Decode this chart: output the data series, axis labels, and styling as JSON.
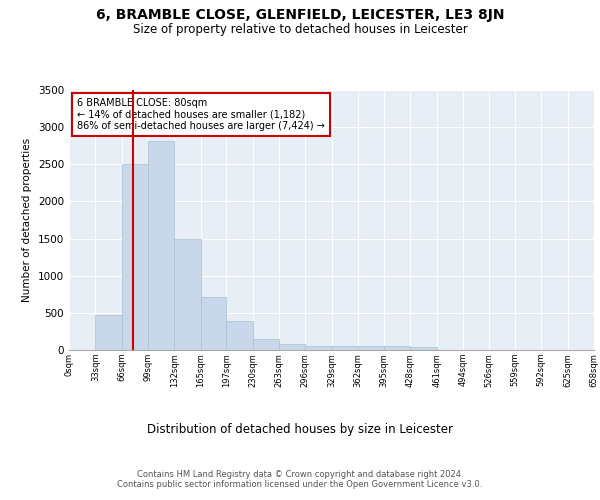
{
  "title": "6, BRAMBLE CLOSE, GLENFIELD, LEICESTER, LE3 8JN",
  "subtitle": "Size of property relative to detached houses in Leicester",
  "xlabel": "Distribution of detached houses by size in Leicester",
  "ylabel": "Number of detached properties",
  "bar_color": "#c8d8ea",
  "bar_edge_color": "#a8c0d0",
  "background_color": "#e8eef5",
  "grid_color": "#ffffff",
  "annotation_box_color": "#cc0000",
  "annotation_line1": "6 BRAMBLE CLOSE: 80sqm",
  "annotation_line2": "← 14% of detached houses are smaller (1,182)",
  "annotation_line3": "86% of semi-detached houses are larger (7,424) →",
  "vline_x": 80,
  "vline_color": "#cc0000",
  "bin_edges": [
    0,
    33,
    66,
    99,
    132,
    165,
    197,
    230,
    263,
    296,
    329,
    362,
    395,
    428,
    461,
    494,
    526,
    559,
    592,
    625,
    658
  ],
  "bin_counts": [
    5,
    465,
    2500,
    2820,
    1500,
    710,
    385,
    150,
    75,
    60,
    55,
    50,
    50,
    40,
    5,
    5,
    5,
    5,
    5,
    5
  ],
  "ylim": [
    0,
    3500
  ],
  "yticks": [
    0,
    500,
    1000,
    1500,
    2000,
    2500,
    3000,
    3500
  ],
  "tick_labels": [
    "0sqm",
    "33sqm",
    "66sqm",
    "99sqm",
    "132sqm",
    "165sqm",
    "197sqm",
    "230sqm",
    "263sqm",
    "296sqm",
    "329sqm",
    "362sqm",
    "395sqm",
    "428sqm",
    "461sqm",
    "494sqm",
    "526sqm",
    "559sqm",
    "592sqm",
    "625sqm",
    "658sqm"
  ],
  "footer_line1": "Contains HM Land Registry data © Crown copyright and database right 2024.",
  "footer_line2": "Contains public sector information licensed under the Open Government Licence v3.0."
}
